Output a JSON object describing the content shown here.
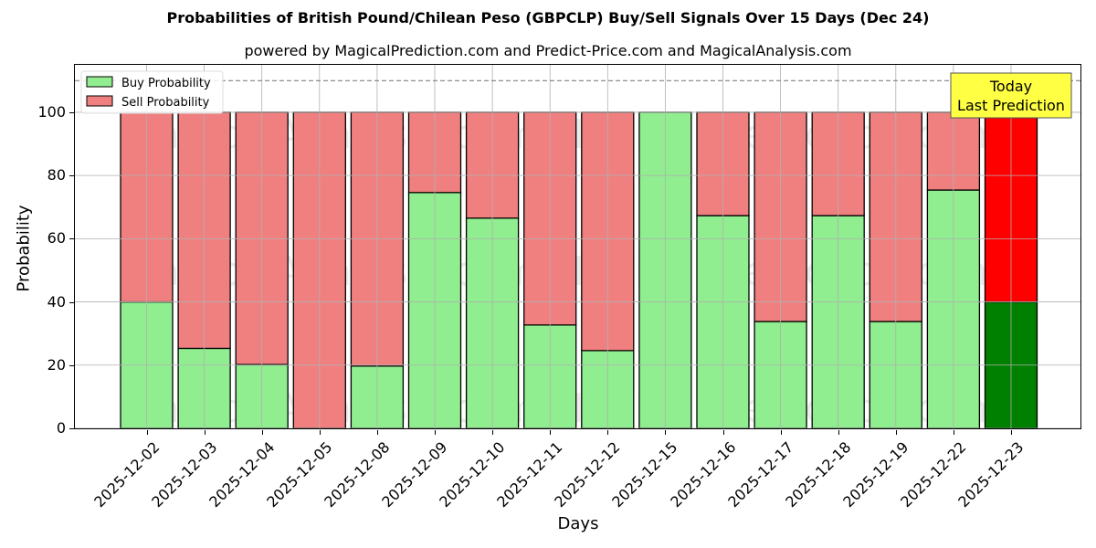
{
  "chart_data": {
    "type": "bar",
    "stacked": true,
    "title": "Probabilities of British Pound/Chilean Peso (GBPCLP) Buy/Sell Signals Over 15 Days (Dec 24)",
    "subtitle": "powered by MagicalPrediction.com and Predict-Price.com and MagicalAnalysis.com",
    "xlabel": "Days",
    "ylabel": "Probability",
    "ylim": [
      0,
      115
    ],
    "yticks": [
      0,
      20,
      40,
      60,
      80,
      100
    ],
    "grid": true,
    "legend_position": "upper left",
    "reference_line": {
      "y": 110,
      "style": "dashed",
      "color": "#808080"
    },
    "categories": [
      "2025-12-02",
      "2025-12-03",
      "2025-12-04",
      "2025-12-05",
      "2025-12-08",
      "2025-12-09",
      "2025-12-10",
      "2025-12-11",
      "2025-12-12",
      "2025-12-15",
      "2025-12-16",
      "2025-12-17",
      "2025-12-18",
      "2025-12-19",
      "2025-12-22",
      "2025-12-23"
    ],
    "series": [
      {
        "name": "Buy Probability",
        "color": "#90ee90",
        "values": [
          40.0,
          25.3,
          20.2,
          0.0,
          19.7,
          74.6,
          66.5,
          32.7,
          24.6,
          100.0,
          67.3,
          33.8,
          67.3,
          33.8,
          75.4,
          40.0
        ]
      },
      {
        "name": "Sell Probability",
        "color": "#f08080",
        "values": [
          60.0,
          74.7,
          79.8,
          100.0,
          80.3,
          25.4,
          33.5,
          67.3,
          75.4,
          0.0,
          32.7,
          66.2,
          32.7,
          66.2,
          24.6,
          60.0
        ]
      }
    ],
    "highlight": {
      "index": 15,
      "buy_color": "#008000",
      "sell_color": "#ff0000",
      "annotation": "Today\nLast Prediction",
      "annotation_bg": "#ffff44"
    },
    "watermarks": [
      "MagicalAnalysis.com",
      "MagicalPrediction.com"
    ]
  },
  "legend": {
    "buy": "Buy Probability",
    "sell": "Sell Probability"
  },
  "annotation": {
    "line1": "Today",
    "line2": "Last Prediction"
  }
}
